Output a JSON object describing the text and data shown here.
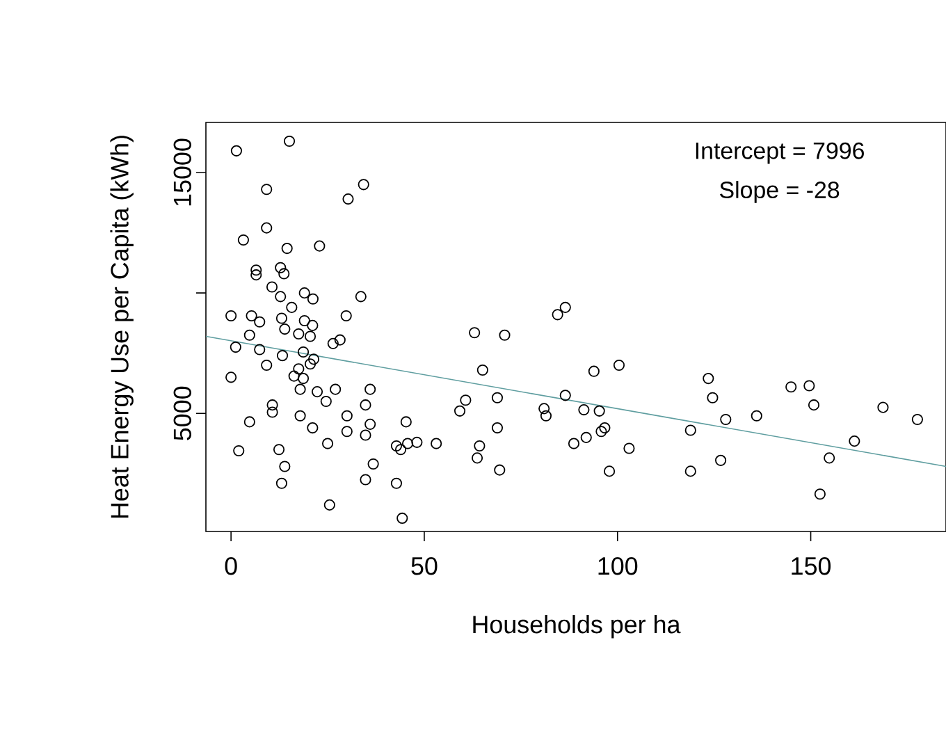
{
  "chart_data": {
    "type": "scatter",
    "xlabel": "Households per ha",
    "ylabel": "Heat Energy Use per Capita (kWh)",
    "annotations": [
      "Intercept = 7996",
      "Slope = -28"
    ],
    "xlim": [
      -6.5,
      185
    ],
    "ylim": [
      100,
      17080
    ],
    "xticks": [
      0,
      50,
      100,
      150
    ],
    "yticks": [
      5000,
      {
        "value": 10000,
        "label": null
      },
      15000
    ],
    "grid": false,
    "series": [
      {
        "color": "#000000",
        "marker": "circle",
        "x": [
          1.4,
          15.1,
          9.2,
          30.3,
          34.3,
          9.2,
          3.2,
          14.5,
          22.9,
          6.5,
          6.5,
          12.8,
          13.7,
          10.6,
          12.8,
          19.0,
          21.2,
          33.6,
          15.7,
          0,
          5.3,
          7.4,
          13.1,
          19.0,
          21.1,
          29.8,
          4.8,
          13.9,
          17.5,
          20.5,
          26.4,
          28.2,
          1.2,
          7.4,
          13.3,
          18.7,
          21.4,
          9.2,
          17.5,
          20.5,
          0,
          16.3,
          18.7,
          17.9,
          22.3,
          24.6,
          27.0,
          36.0,
          34.8,
          10.7,
          10.7,
          4.8,
          17.9,
          21.1,
          30.0,
          30.0,
          34.8,
          36.0,
          45.3,
          25.0,
          2.0,
          12.4,
          13.9,
          13.1,
          36.8,
          34.8,
          42.8,
          43.9,
          45.7,
          48.1,
          53.1,
          42.8,
          25.5,
          44.3,
          63.0,
          70.8,
          84.5,
          86.5,
          65.1,
          93.9,
          100.4,
          60.7,
          59.2,
          68.9,
          81.0,
          81.5,
          86.5,
          91.3,
          95.3,
          68.9,
          96.7,
          95.8,
          91.9,
          88.7,
          103.0,
          64.3,
          63.7,
          69.5,
          97.9,
          123.5,
          124.6,
          128.0,
          136.0,
          144.9,
          149.6,
          150.8,
          168.7,
          177.6,
          161.3,
          154.8,
          126.7,
          118.9,
          118.9,
          152.4
        ],
        "values": [
          15900,
          16300,
          14300,
          13900,
          14500,
          12700,
          12200,
          11850,
          11950,
          10950,
          10750,
          11050,
          10800,
          10250,
          9850,
          10000,
          9750,
          9850,
          9400,
          9050,
          9050,
          8800,
          8950,
          8850,
          8650,
          9050,
          8250,
          8500,
          8300,
          8200,
          7900,
          8050,
          7750,
          7650,
          7400,
          7550,
          7250,
          7000,
          6850,
          7050,
          6500,
          6550,
          6450,
          6000,
          5900,
          5500,
          6000,
          6000,
          5350,
          5350,
          5050,
          4650,
          4900,
          4400,
          4900,
          4250,
          4100,
          4550,
          4650,
          3750,
          3450,
          3500,
          2800,
          2100,
          2900,
          2250,
          3650,
          3500,
          3750,
          3800,
          3750,
          2100,
          1200,
          650,
          8350,
          8250,
          9100,
          9400,
          6800,
          6750,
          7000,
          5550,
          5100,
          5650,
          5200,
          4900,
          5750,
          5150,
          5100,
          4400,
          4400,
          4250,
          4000,
          3750,
          3550,
          3650,
          3150,
          2650,
          2600,
          6450,
          5650,
          4750,
          4900,
          6100,
          6150,
          5350,
          5250,
          4750,
          3850,
          3150,
          3050,
          4300,
          2600,
          1650
        ]
      },
      {
        "type": "line",
        "color": "#5f9ea0",
        "marker": "none",
        "line_style": "solid",
        "x": [
          -6.5,
          185
        ],
        "values": [
          8200,
          2800
        ]
      }
    ]
  }
}
